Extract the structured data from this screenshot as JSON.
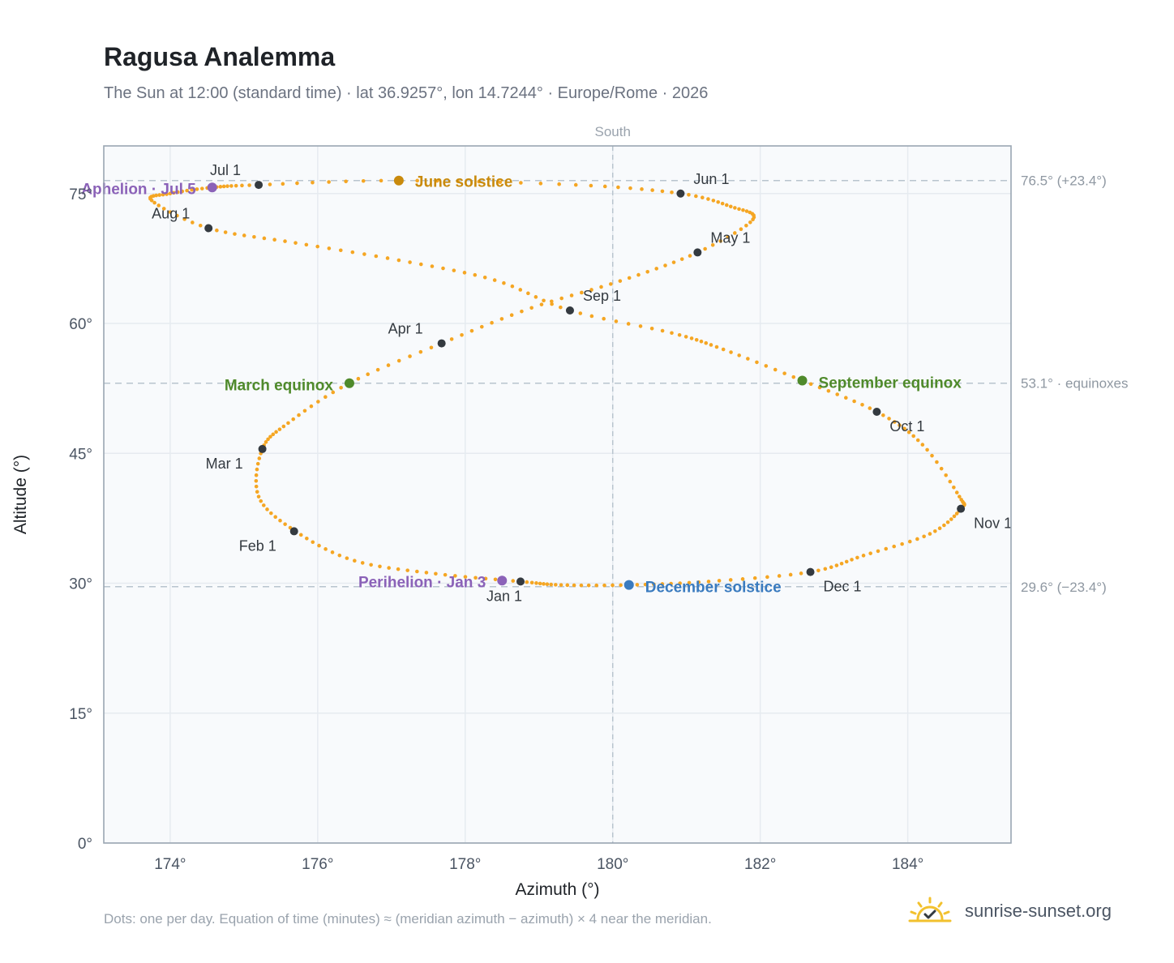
{
  "title": "Ragusa Analemma",
  "subtitle": "The Sun at 12:00 (standard time) · lat 36.9257°, lon 14.7244° · Europe/Rome · 2026",
  "footnote": "Dots: one per day. Equation of time (minutes) ≈ (meridian azimuth − azimuth) × 4 near the meridian.",
  "brand": {
    "name": "sunrise-sunset.org",
    "icon": "sun-logo-icon"
  },
  "colors": {
    "path": "#f5a623",
    "month_marker": "#343a40",
    "june_solstice": "#c98a0c",
    "december_solstice": "#3a7bbf",
    "equinox": "#4f8a2b",
    "apsis": "#8b62b8",
    "grid": "#e6ebf0",
    "guide": "#b8c4ce",
    "plot_bg": "#f8fafc"
  },
  "chart_data": {
    "type": "scatter",
    "title": "Ragusa Analemma",
    "xlabel": "Azimuth (°)",
    "ylabel": "Altitude (°)",
    "xlim": [
      173.1,
      185.4
    ],
    "ylim": [
      0,
      80.5
    ],
    "x_ticks": [
      174,
      176,
      178,
      180,
      182,
      184
    ],
    "x_tick_labels": [
      "174°",
      "176°",
      "178°",
      "180°",
      "182°",
      "184°"
    ],
    "y_ticks": [
      0,
      15,
      30,
      45,
      60,
      75
    ],
    "y_tick_labels": [
      "0°",
      "15°",
      "30°",
      "45°",
      "60°",
      "75°"
    ],
    "grid": true,
    "meridian": {
      "azimuth": 180,
      "label": "South"
    },
    "reference_lines": [
      {
        "altitude": 76.5,
        "label": "76.5° (+23.4°)"
      },
      {
        "altitude": 53.1,
        "label": "53.1° · equinoxes"
      },
      {
        "altitude": 29.6,
        "label": "29.6° (−23.4°)"
      }
    ],
    "series": [
      {
        "marker": "one dot per day",
        "color": "#f5a623",
        "points": [
          [
            178.75,
            30.2
          ],
          [
            177.6,
            31.1
          ],
          [
            176.5,
            32.6
          ],
          [
            175.7,
            36.0
          ],
          [
            175.2,
            40.0
          ],
          [
            175.25,
            45.5
          ],
          [
            175.6,
            48.5
          ],
          [
            176.43,
            53.1
          ],
          [
            177.68,
            57.7
          ],
          [
            178.9,
            61.8
          ],
          [
            180.1,
            64.9
          ],
          [
            181.15,
            68.2
          ],
          [
            181.9,
            72.0
          ],
          [
            181.6,
            73.5
          ],
          [
            180.92,
            75.0
          ],
          [
            179.5,
            76.0
          ],
          [
            177.1,
            76.5
          ],
          [
            175.2,
            76.0
          ],
          [
            174.57,
            75.7
          ],
          [
            174.0,
            75.0
          ],
          [
            173.75,
            74.2
          ],
          [
            174.52,
            71.0
          ],
          [
            175.7,
            69.3
          ],
          [
            177.1,
            67.3
          ],
          [
            178.4,
            65.0
          ],
          [
            179.42,
            61.5
          ],
          [
            180.8,
            58.9
          ],
          [
            181.5,
            57.0
          ],
          [
            182.57,
            53.4
          ],
          [
            183.58,
            49.8
          ],
          [
            184.2,
            46.0
          ],
          [
            184.7,
            40.0
          ],
          [
            184.72,
            38.6
          ],
          [
            184.3,
            35.7
          ],
          [
            183.4,
            33.2
          ],
          [
            182.68,
            31.3
          ],
          [
            181.3,
            30.2
          ],
          [
            180.22,
            29.8
          ],
          [
            179.3,
            29.8
          ],
          [
            178.75,
            30.2
          ]
        ]
      }
    ],
    "month_markers": [
      {
        "label": "Jan 1",
        "x": 178.75,
        "y": 30.2
      },
      {
        "label": "Feb 1",
        "x": 175.68,
        "y": 36.0
      },
      {
        "label": "Mar 1",
        "x": 175.25,
        "y": 45.5
      },
      {
        "label": "Apr 1",
        "x": 177.68,
        "y": 57.7
      },
      {
        "label": "May 1",
        "x": 181.15,
        "y": 68.2
      },
      {
        "label": "Jun 1",
        "x": 180.92,
        "y": 75.0
      },
      {
        "label": "Jul 1",
        "x": 175.2,
        "y": 76.0
      },
      {
        "label": "Aug 1",
        "x": 174.52,
        "y": 71.0
      },
      {
        "label": "Sep 1",
        "x": 179.42,
        "y": 61.5
      },
      {
        "label": "Oct 1",
        "x": 183.58,
        "y": 49.8
      },
      {
        "label": "Nov 1",
        "x": 184.72,
        "y": 38.6
      },
      {
        "label": "Dec 1",
        "x": 182.68,
        "y": 31.3
      }
    ],
    "events": [
      {
        "label": "June solstice",
        "x": 177.1,
        "y": 76.5,
        "color": "#c98a0c"
      },
      {
        "label": "December solstice",
        "x": 180.22,
        "y": 29.8,
        "color": "#3a7bbf"
      },
      {
        "label": "March equinox",
        "x": 176.43,
        "y": 53.1,
        "color": "#4f8a2b"
      },
      {
        "label": "September equinox",
        "x": 182.57,
        "y": 53.4,
        "color": "#4f8a2b"
      },
      {
        "label": "Perihelion · Jan 3",
        "x": 178.5,
        "y": 30.3,
        "color": "#8b62b8"
      },
      {
        "label": "Aphelion · Jul 5",
        "x": 174.57,
        "y": 75.7,
        "color": "#8b62b8"
      }
    ]
  }
}
